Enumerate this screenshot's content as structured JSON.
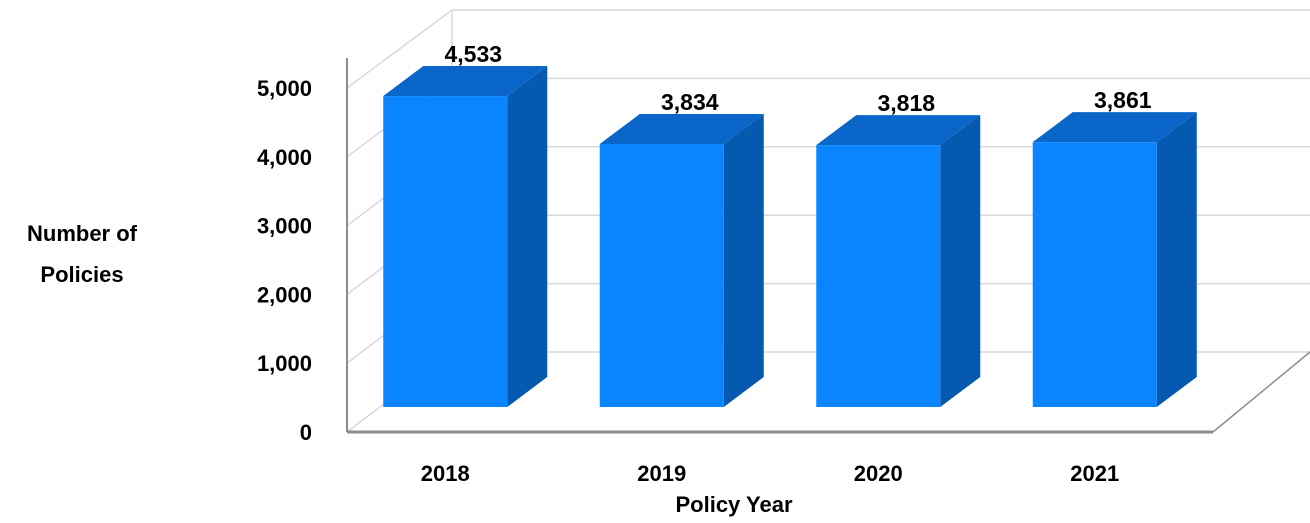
{
  "chart_data": {
    "type": "bar",
    "style": "3d-column",
    "categories": [
      "2018",
      "2019",
      "2020",
      "2021"
    ],
    "values": [
      4533,
      3834,
      3818,
      3861
    ],
    "data_labels": [
      "4,533",
      "3,834",
      "3,818",
      "3,861"
    ],
    "xlabel": "Policy Year",
    "ylabel_lines": [
      "Number of",
      "Policies"
    ],
    "ylim": [
      0,
      5000
    ],
    "yticks": [
      0,
      1000,
      2000,
      3000,
      4000,
      5000
    ],
    "ytick_labels": [
      "0",
      "1,000",
      "2,000",
      "3,000",
      "4,000",
      "5,000"
    ],
    "grid": true,
    "legend": "none",
    "colors": {
      "front": "#0a85ff",
      "top": "#0a66c9",
      "side": "#0559ae",
      "grid": "#d9d9d9",
      "axis": "#8c8c8c"
    }
  }
}
